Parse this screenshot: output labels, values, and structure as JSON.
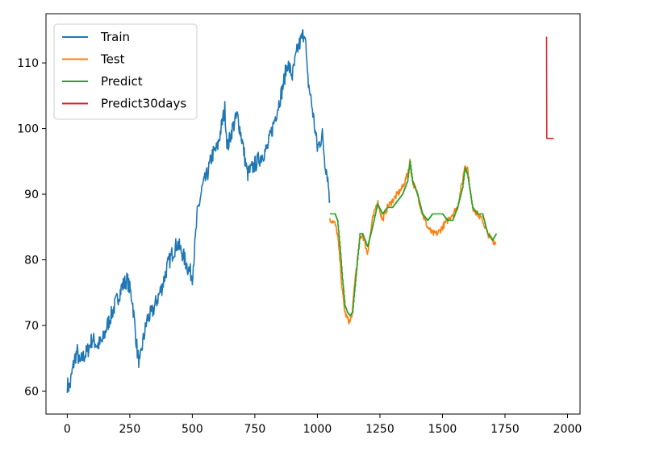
{
  "chart_data": {
    "type": "line",
    "title": "",
    "xlabel": "",
    "ylabel": "",
    "xlim": [
      -85,
      2050
    ],
    "ylim": [
      56.5,
      117.5
    ],
    "xticks": [
      0,
      250,
      500,
      750,
      1000,
      1250,
      1500,
      1750,
      2000
    ],
    "yticks": [
      60,
      70,
      80,
      90,
      100,
      110
    ],
    "grid": false,
    "legend_position": "upper-left",
    "series": [
      {
        "name": "Train",
        "color": "#1f77b4",
        "x": [
          0,
          10,
          20,
          30,
          40,
          50,
          60,
          70,
          80,
          100,
          120,
          140,
          160,
          180,
          200,
          220,
          240,
          260,
          270,
          280,
          290,
          300,
          320,
          340,
          360,
          380,
          400,
          420,
          440,
          460,
          480,
          500,
          510,
          520,
          540,
          560,
          580,
          600,
          620,
          630,
          640,
          660,
          680,
          700,
          720,
          740,
          760,
          780,
          800,
          820,
          840,
          860,
          880,
          900,
          920,
          940,
          950,
          960,
          980,
          1000,
          1020,
          1030,
          1040,
          1050
        ],
        "y": [
          61,
          60.5,
          63,
          65,
          66,
          64,
          65,
          65.5,
          66,
          68,
          67,
          67.5,
          70,
          72,
          74,
          76,
          77,
          74,
          70,
          66,
          64,
          67,
          71,
          72,
          74,
          76,
          79,
          81,
          82.5,
          81,
          79,
          77.5,
          82,
          87,
          91,
          93,
          96,
          97,
          101,
          103,
          97,
          100,
          102,
          98,
          93,
          94,
          95,
          96,
          97,
          100,
          103,
          106,
          110,
          108,
          112,
          114,
          115,
          108,
          103,
          97,
          99,
          95,
          93,
          89
        ]
      },
      {
        "name": "Test",
        "color": "#ff7f0e",
        "x": [
          1050,
          1060,
          1070,
          1080,
          1090,
          1100,
          1110,
          1120,
          1130,
          1140,
          1150,
          1160,
          1170,
          1180,
          1200,
          1220,
          1240,
          1260,
          1280,
          1300,
          1320,
          1340,
          1360,
          1370,
          1380,
          1400,
          1420,
          1440,
          1460,
          1480,
          1500,
          1520,
          1540,
          1560,
          1580,
          1590,
          1600,
          1620,
          1640,
          1660,
          1680,
          1700,
          1715
        ],
        "y": [
          86,
          86,
          85.5,
          84,
          80,
          75,
          72,
          71,
          70.5,
          72,
          77,
          80,
          83,
          84,
          81,
          86,
          89,
          86,
          88,
          89,
          90,
          91,
          93,
          95,
          92,
          90,
          87,
          85,
          84,
          84,
          85,
          86,
          87,
          88,
          92,
          94.5,
          94,
          88,
          87,
          86,
          84,
          83,
          82.5
        ]
      },
      {
        "name": "Predict",
        "color": "#2ca02c",
        "x": [
          1050,
          1060,
          1070,
          1080,
          1090,
          1100,
          1110,
          1120,
          1130,
          1140,
          1150,
          1160,
          1170,
          1180,
          1200,
          1220,
          1240,
          1260,
          1280,
          1300,
          1320,
          1340,
          1360,
          1370,
          1380,
          1400,
          1420,
          1440,
          1460,
          1480,
          1500,
          1520,
          1540,
          1560,
          1580,
          1590,
          1600,
          1620,
          1640,
          1660,
          1680,
          1700,
          1715
        ],
        "y": [
          87,
          87,
          87,
          86,
          82,
          77,
          73,
          72,
          71.5,
          72,
          76,
          80,
          84,
          84,
          82,
          85,
          88.5,
          87,
          88,
          88,
          89,
          90,
          92,
          95,
          92,
          90,
          87,
          86,
          87,
          87,
          87,
          86,
          86,
          88,
          91,
          94,
          93,
          88,
          87,
          87,
          84,
          83,
          84
        ]
      },
      {
        "name": "Predict30days",
        "color": "#d62728",
        "x": [
          1916,
          1917,
          1920,
          1925,
          1930,
          1935,
          1940,
          1945
        ],
        "y": [
          114,
          98.5,
          98.5,
          98.5,
          98.5,
          98.5,
          98.5,
          98.5
        ]
      }
    ]
  }
}
